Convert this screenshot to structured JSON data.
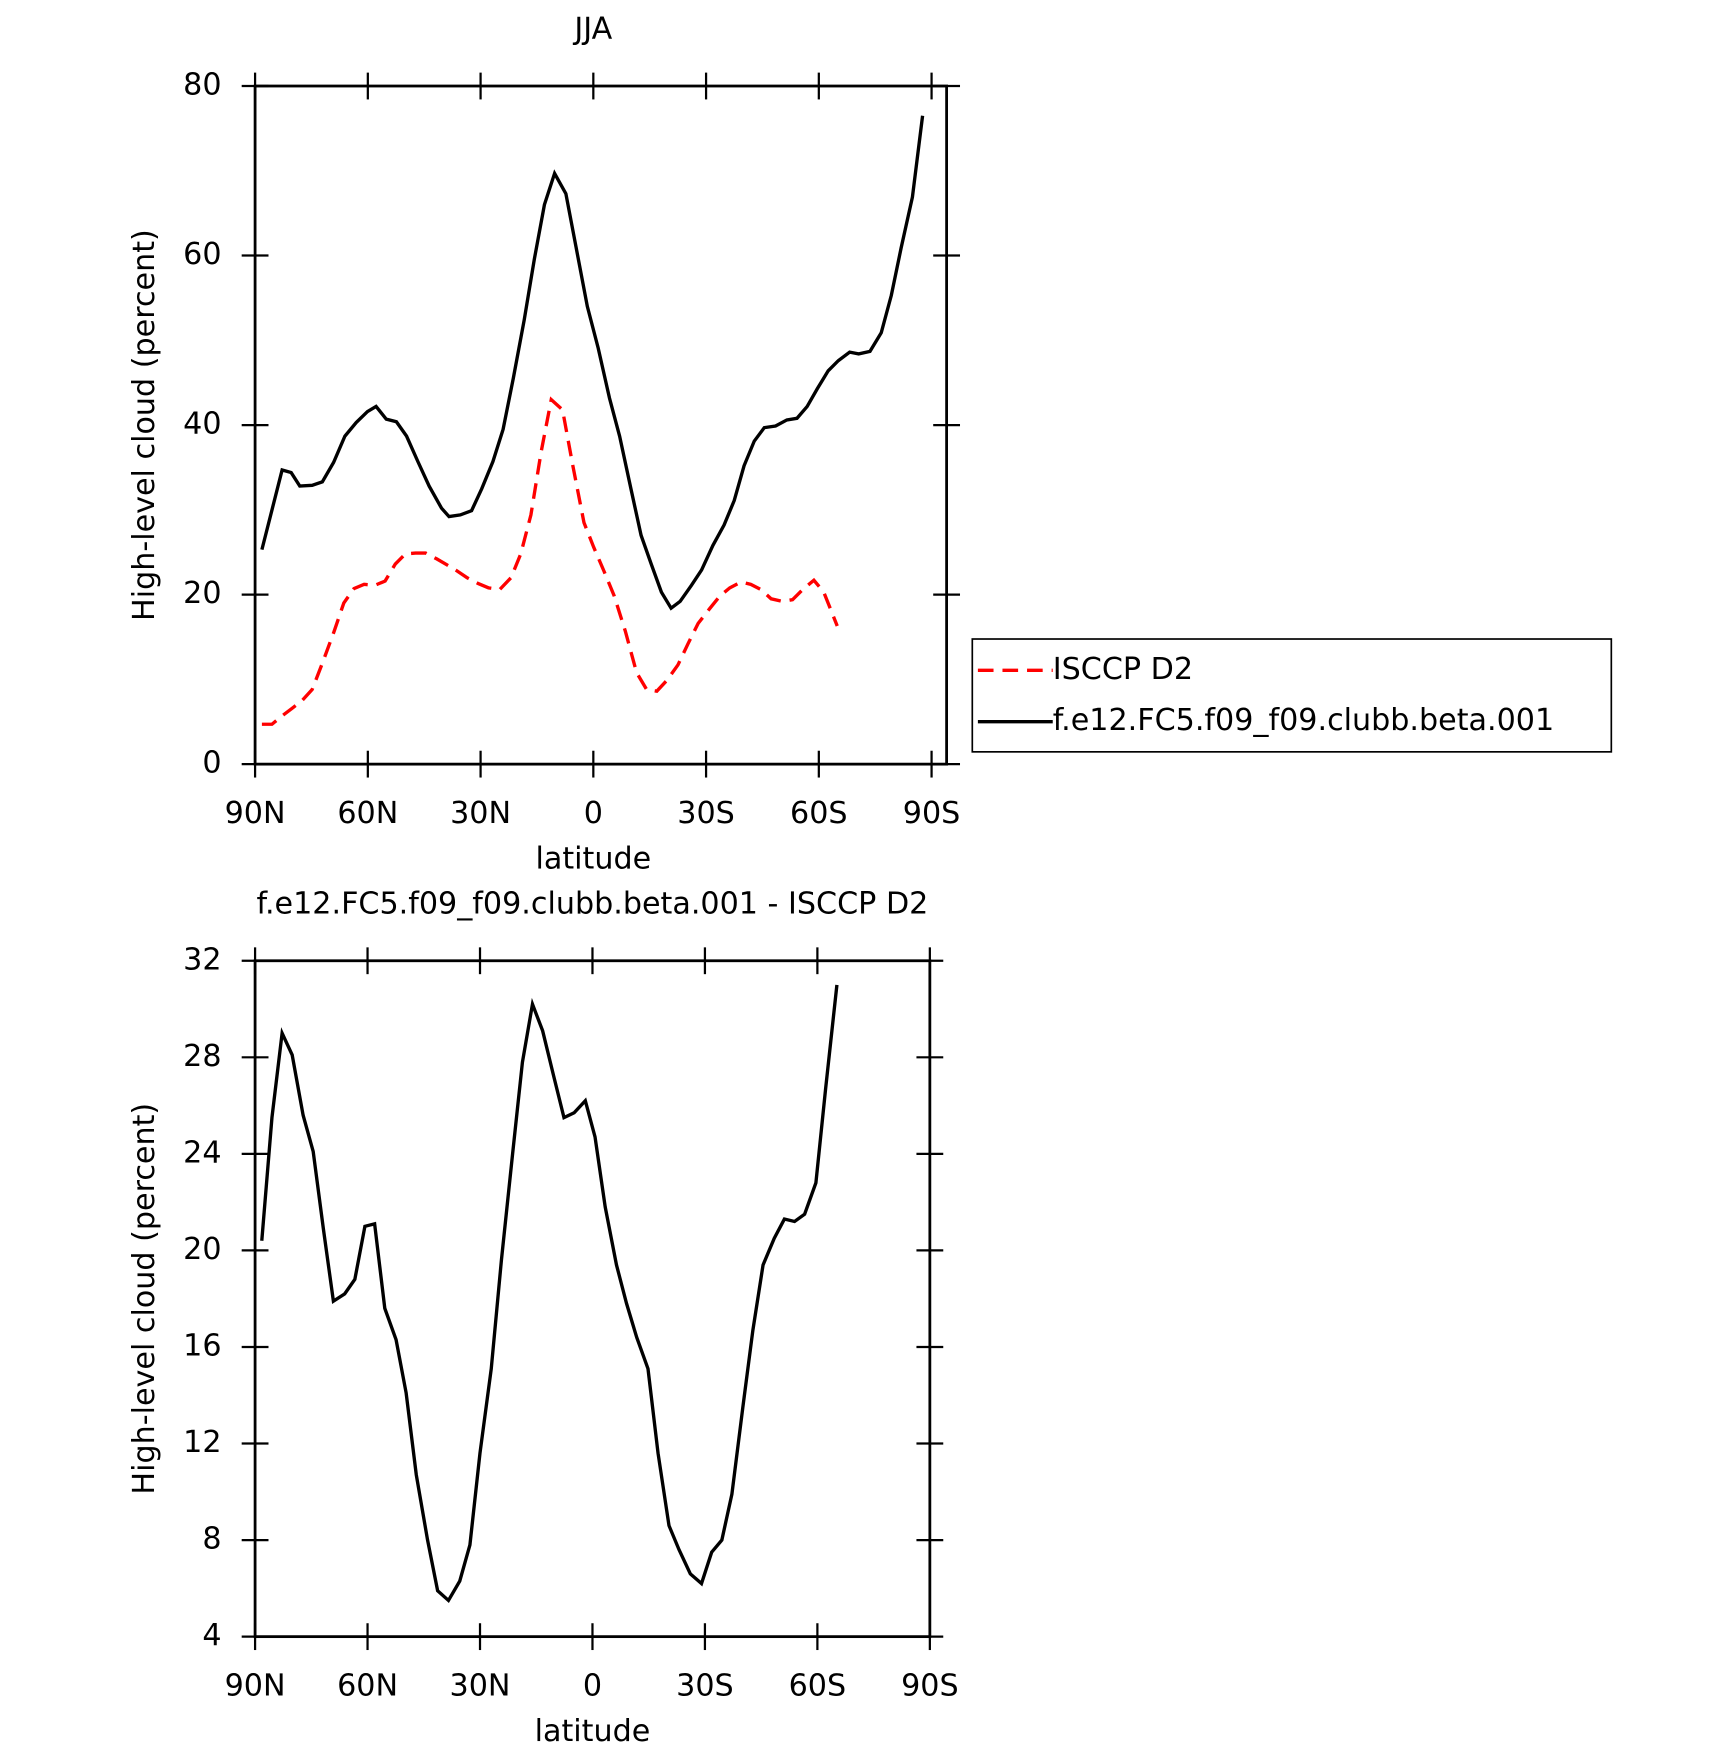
{
  "chart_data": [
    {
      "type": "line",
      "title": "JJA",
      "y_label": "High-level cloud (percent)",
      "x_label": "latitude",
      "xlim": [
        90,
        -94
      ],
      "xticks": [
        {
          "value": 90,
          "label": "90N"
        },
        {
          "value": 60,
          "label": "60N"
        },
        {
          "value": 30,
          "label": "30N"
        },
        0,
        {
          "value": -30,
          "label": "30S"
        },
        {
          "value": -60,
          "label": "60S"
        },
        {
          "value": -90,
          "label": "90S"
        }
      ],
      "ylim": [
        0,
        80
      ],
      "yticks": [
        0,
        20,
        40,
        60,
        80
      ],
      "legend": "right",
      "series": [
        {
          "name": "ISCCP D2",
          "color": "#ff0000",
          "dash": true,
          "x": [
            88.2,
            85.5,
            82.8,
            80.1,
            77.5,
            74.8,
            72.1,
            69.1,
            66.4,
            63.7,
            61.0,
            58.1,
            55.4,
            52.7,
            50.0,
            47.3,
            44.6,
            41.6,
            38.9,
            36.3,
            33.6,
            30.6,
            27.9,
            24.9,
            21.9,
            19.3,
            16.6,
            13.9,
            11.2,
            8.2,
            5.5,
            2.5,
            -0.1,
            -2.8,
            -5.5,
            -8.5,
            -11.5,
            -14.2,
            -16.9,
            -19.6,
            -22.5,
            -25.2,
            -27.9,
            -30.9,
            -33.6,
            -36.3,
            -39.3,
            -41.9,
            -44.6,
            -47.3,
            -50.3,
            -53.0,
            -55.7,
            -58.7,
            -61.3,
            -64.9
          ],
          "values": [
            4.7,
            4.7,
            5.7,
            6.6,
            7.5,
            8.8,
            11.9,
            15.5,
            19.0,
            20.7,
            21.2,
            21.1,
            21.6,
            23.6,
            24.8,
            24.9,
            24.9,
            24.2,
            23.5,
            22.8,
            22.0,
            21.3,
            20.8,
            20.6,
            22.0,
            24.8,
            29.4,
            36.8,
            43.0,
            41.8,
            35.3,
            28.5,
            25.6,
            22.8,
            19.9,
            15.7,
            10.8,
            8.8,
            8.6,
            9.9,
            11.7,
            14.2,
            16.6,
            18.3,
            19.8,
            20.8,
            21.5,
            21.2,
            20.6,
            19.5,
            19.2,
            19.4,
            20.6,
            21.7,
            20.3,
            16.3
          ]
        },
        {
          "name": "f.e12.FC5.f09_f09.clubb.beta.001",
          "color": "#000000",
          "dash": false,
          "x": [
            88.2,
            82.8,
            80.4,
            78.1,
            74.8,
            72.1,
            69.1,
            66.1,
            63.1,
            60.1,
            57.8,
            55.1,
            52.4,
            49.7,
            46.7,
            43.7,
            40.4,
            38.4,
            35.4,
            32.4,
            29.7,
            26.7,
            24.0,
            21.3,
            18.4,
            15.7,
            13.0,
            10.3,
            7.3,
            4.6,
            1.6,
            -1.3,
            -4.3,
            -7.0,
            -10.0,
            -12.7,
            -15.4,
            -18.1,
            -20.7,
            -23.1,
            -26.1,
            -28.8,
            -31.8,
            -34.8,
            -37.5,
            -40.1,
            -42.8,
            -45.5,
            -48.5,
            -51.5,
            -54.2,
            -56.9,
            -59.6,
            -62.5,
            -65.2,
            -68.2,
            -70.6,
            -73.6,
            -76.6,
            -79.3,
            -81.9,
            -84.9,
            -87.6
          ],
          "values": [
            25.3,
            34.7,
            34.4,
            32.8,
            32.9,
            33.3,
            35.6,
            38.7,
            40.3,
            41.6,
            42.2,
            40.7,
            40.4,
            38.7,
            35.7,
            32.8,
            30.2,
            29.2,
            29.4,
            29.9,
            32.5,
            35.7,
            39.5,
            45.5,
            52.4,
            59.6,
            66.0,
            69.7,
            67.3,
            61.0,
            54.0,
            49.1,
            43.2,
            38.7,
            32.5,
            27.0,
            23.6,
            20.3,
            18.4,
            19.2,
            21.1,
            22.9,
            25.8,
            28.2,
            31.1,
            35.2,
            38.1,
            39.7,
            39.9,
            40.6,
            40.8,
            42.2,
            44.3,
            46.4,
            47.6,
            48.6,
            48.4,
            48.7,
            50.9,
            55.3,
            60.9,
            66.9,
            76.5
          ]
        }
      ]
    },
    {
      "type": "line",
      "title": "f.e12.FC5.f09_f09.clubb.beta.001 - ISCCP D2",
      "y_label": "High-level cloud (percent)",
      "x_label": "latitude",
      "xlim": [
        90,
        -90
      ],
      "xticks": [
        {
          "value": 90,
          "label": "90N"
        },
        {
          "value": 60,
          "label": "60N"
        },
        {
          "value": 30,
          "label": "30N"
        },
        0,
        {
          "value": -30,
          "label": "30S"
        },
        {
          "value": -60,
          "label": "60S"
        },
        {
          "value": -90,
          "label": "90S"
        }
      ],
      "ylim": [
        4,
        32
      ],
      "yticks": [
        4,
        8,
        12,
        16,
        20,
        24,
        28,
        32
      ],
      "series": [
        {
          "color": "#000000",
          "dash": false,
          "x": [
            88.2,
            85.5,
            82.8,
            80.1,
            77.2,
            74.5,
            71.8,
            69.1,
            66.1,
            63.4,
            60.7,
            58.1,
            55.4,
            52.4,
            49.7,
            47.0,
            44.0,
            41.3,
            38.4,
            35.4,
            32.7,
            30.0,
            27.0,
            24.3,
            21.3,
            18.7,
            16.0,
            13.3,
            10.3,
            7.6,
            4.9,
            1.9,
            -0.7,
            -3.4,
            -6.4,
            -9.1,
            -11.8,
            -14.8,
            -17.5,
            -20.4,
            -23.1,
            -26.1,
            -29.1,
            -31.8,
            -34.5,
            -37.2,
            -40.1,
            -42.8,
            -45.5,
            -48.5,
            -51.2,
            -53.9,
            -56.6,
            -59.6,
            -62.2,
            -65.2
          ],
          "values": [
            20.4,
            25.5,
            29.0,
            28.1,
            25.6,
            24.1,
            20.9,
            17.9,
            18.2,
            18.8,
            21.0,
            21.1,
            17.6,
            16.3,
            14.1,
            10.7,
            8.0,
            5.9,
            5.5,
            6.3,
            7.8,
            11.6,
            15.1,
            19.6,
            24.0,
            27.8,
            30.2,
            29.1,
            27.2,
            25.5,
            25.7,
            26.2,
            24.7,
            21.8,
            19.4,
            17.8,
            16.4,
            15.1,
            11.6,
            8.6,
            7.6,
            6.6,
            6.2,
            7.5,
            8.0,
            9.9,
            13.5,
            16.7,
            19.4,
            20.5,
            21.3,
            21.2,
            21.5,
            22.8,
            26.7,
            31.0
          ]
        }
      ]
    }
  ]
}
